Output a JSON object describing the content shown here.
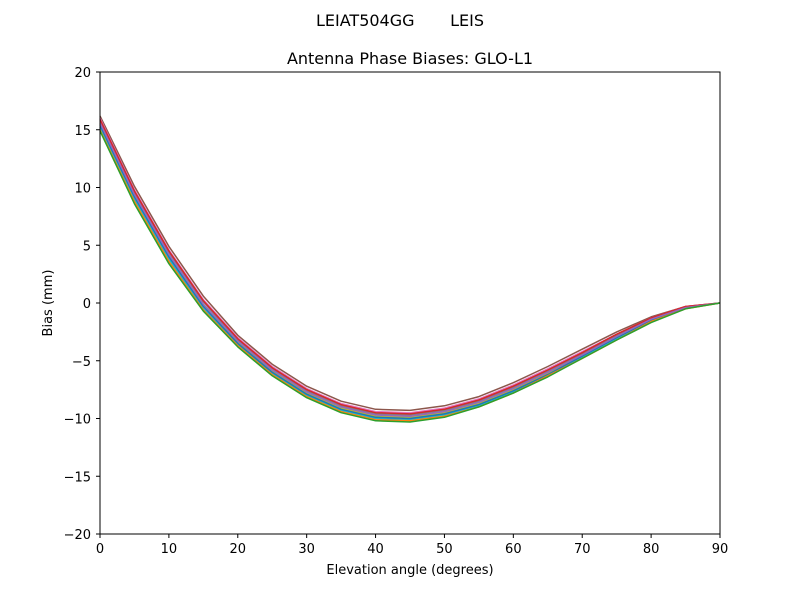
{
  "figure": {
    "suptitle": "LEIAT504GG       LEIS"
  },
  "chart_data": {
    "type": "line",
    "title": "Antenna Phase Biases: GLO-L1",
    "xlabel": "Elevation angle (degrees)",
    "ylabel": "Bias (mm)",
    "xlim": [
      0,
      90
    ],
    "ylim": [
      -20,
      20
    ],
    "x_ticks": [
      0,
      10,
      20,
      30,
      40,
      50,
      60,
      70,
      80,
      90
    ],
    "y_ticks": [
      -20,
      -15,
      -10,
      -5,
      0,
      5,
      10,
      15,
      20
    ],
    "y_tick_labels": [
      "−20",
      "−15",
      "−10",
      "−5",
      "0",
      "5",
      "10",
      "15",
      "20"
    ],
    "x_tick_labels": [
      "0",
      "10",
      "20",
      "30",
      "40",
      "50",
      "60",
      "70",
      "80",
      "90"
    ],
    "grid": false,
    "legend": "none",
    "x": [
      0,
      5,
      10,
      15,
      20,
      25,
      30,
      35,
      40,
      45,
      50,
      55,
      60,
      65,
      70,
      75,
      80,
      85,
      90
    ],
    "series": [
      {
        "color": "#8c564b",
        "values": [
          16.2,
          10.1,
          4.9,
          0.6,
          -2.8,
          -5.3,
          -7.2,
          -8.5,
          -9.2,
          -9.3,
          -8.9,
          -8.1,
          -6.9,
          -5.5,
          -4.0,
          -2.5,
          -1.2,
          -0.3,
          0.0
        ]
      },
      {
        "color": "#e377c2",
        "values": [
          16.0,
          9.8,
          4.6,
          0.3,
          -3.0,
          -5.5,
          -7.4,
          -8.7,
          -9.4,
          -9.5,
          -9.1,
          -8.3,
          -7.1,
          -5.7,
          -4.2,
          -2.7,
          -1.3,
          -0.3,
          0.0
        ]
      },
      {
        "color": "#7f7f7f",
        "values": [
          15.8,
          9.6,
          4.4,
          0.1,
          -3.2,
          -5.7,
          -7.6,
          -8.9,
          -9.6,
          -9.7,
          -9.3,
          -8.5,
          -7.3,
          -5.9,
          -4.4,
          -2.8,
          -1.4,
          -0.4,
          0.0
        ]
      },
      {
        "color": "#bcbd22",
        "values": [
          15.5,
          9.3,
          4.1,
          -0.2,
          -3.4,
          -5.9,
          -7.8,
          -9.1,
          -9.8,
          -9.9,
          -9.5,
          -8.7,
          -7.5,
          -6.1,
          -4.6,
          -3.0,
          -1.5,
          -0.4,
          0.0
        ]
      },
      {
        "color": "#17becf",
        "values": [
          15.2,
          9.0,
          3.8,
          -0.5,
          -3.6,
          -6.1,
          -8.0,
          -9.3,
          -10.0,
          -10.1,
          -9.7,
          -8.9,
          -7.7,
          -6.3,
          -4.7,
          -3.1,
          -1.6,
          -0.4,
          0.0
        ]
      },
      {
        "color": "#1f77b4",
        "values": [
          15.4,
          9.2,
          4.0,
          -0.3,
          -3.5,
          -6.0,
          -7.9,
          -9.2,
          -9.9,
          -10.0,
          -9.6,
          -8.8,
          -7.6,
          -6.2,
          -4.6,
          -3.0,
          -1.5,
          -0.4,
          0.0
        ]
      },
      {
        "color": "#d62728",
        "values": [
          15.9,
          9.7,
          4.5,
          0.2,
          -3.1,
          -5.6,
          -7.5,
          -8.8,
          -9.5,
          -9.6,
          -9.2,
          -8.4,
          -7.2,
          -5.8,
          -4.3,
          -2.7,
          -1.3,
          -0.3,
          0.0
        ]
      },
      {
        "color": "#ff7f0e",
        "values": [
          15.0,
          8.8,
          3.6,
          -0.6,
          -3.7,
          -6.2,
          -8.1,
          -9.4,
          -10.1,
          -10.2,
          -9.8,
          -9.0,
          -7.8,
          -6.3,
          -4.8,
          -3.2,
          -1.6,
          -0.5,
          0.0
        ]
      },
      {
        "color": "#9467bd",
        "values": [
          15.6,
          9.4,
          4.2,
          -0.1,
          -3.3,
          -5.8,
          -7.7,
          -9.0,
          -9.7,
          -9.8,
          -9.4,
          -8.6,
          -7.4,
          -6.0,
          -4.5,
          -2.9,
          -1.4,
          -0.4,
          0.0
        ]
      },
      {
        "color": "#2ca02c",
        "values": [
          14.9,
          8.6,
          3.4,
          -0.7,
          -3.8,
          -6.3,
          -8.2,
          -9.5,
          -10.2,
          -10.3,
          -9.9,
          -9.0,
          -7.8,
          -6.4,
          -4.8,
          -3.2,
          -1.7,
          -0.5,
          0.0
        ]
      }
    ]
  }
}
